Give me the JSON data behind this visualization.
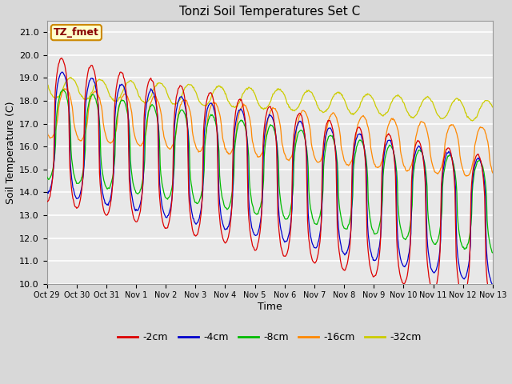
{
  "title": "Tonzi Soil Temperatures Set C",
  "xlabel": "Time",
  "ylabel": "Soil Temperature (C)",
  "annotation": "TZ_fmet",
  "ylim": [
    10.0,
    21.5
  ],
  "yticks": [
    10.0,
    11.0,
    12.0,
    13.0,
    14.0,
    15.0,
    16.0,
    17.0,
    18.0,
    19.0,
    20.0,
    21.0
  ],
  "xtick_labels": [
    "Oct 29",
    "Oct 30",
    "Oct 31",
    "Nov 1",
    "Nov 2",
    "Nov 3",
    "Nov 4",
    "Nov 5",
    "Nov 6",
    "Nov 7",
    "Nov 8",
    "Nov 9",
    "Nov 10",
    "Nov 11",
    "Nov 12",
    "Nov 13"
  ],
  "colors": {
    "-2cm": "#dd0000",
    "-4cm": "#0000cc",
    "-8cm": "#00bb00",
    "-16cm": "#ff8800",
    "-32cm": "#cccc00"
  },
  "bg_color": "#d8d8d8",
  "plot_bg_color": "#e8e8e8",
  "annotation_bg": "#ffffcc",
  "annotation_border": "#cc8800",
  "annotation_text_color": "#880000"
}
